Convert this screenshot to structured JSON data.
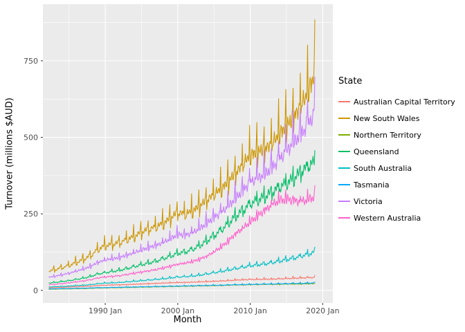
{
  "chart_data": {
    "type": "line",
    "title": "",
    "xlabel": "Month",
    "ylabel": "Turnover (millions $AUD)",
    "legend_title": "State",
    "panel_bg": "#EBEBEB",
    "grid_color": "#FFFFFF",
    "background": "#FFFFFF",
    "tick_label_color": "#4D4D4D",
    "x_tick_labels": [
      "1990 Jan",
      "2000 Jan",
      "2010 Jan",
      "2020 Jan"
    ],
    "x_tick_years": [
      1990,
      2000,
      2010,
      2020
    ],
    "x_minor_years": [
      1985,
      1995,
      2005,
      2015
    ],
    "y_ticks": [
      0,
      250,
      500,
      750
    ],
    "y_minor_ticks": [
      125,
      375,
      625,
      875
    ],
    "x_range_years": [
      1981.4,
      2021.4
    ],
    "y_range": [
      -41,
      935
    ],
    "x_start": 1982.25,
    "x_end": 2018.97,
    "seasonal_pattern": [
      -0.45,
      -0.28,
      -0.12,
      -0.15,
      -0.08,
      -0.18,
      -0.06,
      -0.1,
      -0.04,
      0.03,
      0.2,
      1.0
    ],
    "years_start": 1982,
    "years_end": 2019,
    "series": [
      {
        "name": "Australian Capital Territory",
        "color": "#F8766D",
        "seasonal_amplitude": 0.12,
        "values": [
          8,
          9,
          10,
          11,
          12,
          13,
          14,
          16,
          17,
          18,
          18,
          19,
          20,
          21,
          22,
          23,
          24,
          25,
          26,
          26,
          27,
          28,
          29,
          30,
          31,
          32,
          34,
          35,
          36,
          36,
          37,
          37,
          38,
          39,
          40,
          41,
          42,
          43
        ]
      },
      {
        "name": "New South Wales",
        "color": "#CD9600",
        "seasonal_amplitude": 0.2,
        "values": [
          62,
          68,
          75,
          82,
          92,
          102,
          115,
          135,
          148,
          152,
          158,
          168,
          178,
          192,
          202,
          210,
          222,
          238,
          258,
          252,
          262,
          278,
          298,
          318,
          335,
          360,
          388,
          418,
          448,
          458,
          468,
          488,
          518,
          545,
          575,
          615,
          660,
          730
        ]
      },
      {
        "name": "Northern Territory",
        "color": "#7CAE00",
        "seasonal_amplitude": 0.12,
        "values": [
          4,
          4,
          5,
          5,
          6,
          6,
          7,
          8,
          8,
          9,
          9,
          10,
          10,
          11,
          11,
          12,
          12,
          13,
          13,
          14,
          14,
          15,
          15,
          16,
          16,
          17,
          18,
          18,
          19,
          19,
          20,
          20,
          20,
          21,
          21,
          21,
          22,
          22
        ]
      },
      {
        "name": "Queensland",
        "color": "#00BE67",
        "seasonal_amplitude": 0.09,
        "values": [
          24,
          26,
          29,
          32,
          36,
          40,
          46,
          54,
          58,
          62,
          66,
          72,
          78,
          84,
          90,
          96,
          104,
          112,
          122,
          126,
          134,
          146,
          162,
          180,
          198,
          220,
          244,
          262,
          284,
          296,
          308,
          322,
          338,
          352,
          368,
          388,
          408,
          424
        ]
      },
      {
        "name": "South Australia",
        "color": "#00BFC4",
        "seasonal_amplitude": 0.1,
        "values": [
          11,
          12,
          13,
          14,
          16,
          17,
          19,
          22,
          24,
          25,
          26,
          28,
          30,
          32,
          34,
          36,
          38,
          41,
          44,
          45,
          47,
          50,
          54,
          58,
          62,
          67,
          72,
          76,
          81,
          84,
          87,
          91,
          96,
          101,
          106,
          112,
          119,
          126
        ]
      },
      {
        "name": "Tasmania",
        "color": "#00A9FF",
        "seasonal_amplitude": 0.12,
        "values": [
          5,
          5,
          6,
          6,
          7,
          7,
          8,
          9,
          9,
          10,
          10,
          11,
          11,
          12,
          12,
          13,
          13,
          14,
          14,
          15,
          15,
          16,
          16,
          17,
          17,
          18,
          19,
          19,
          20,
          20,
          21,
          21,
          22,
          22,
          23,
          23,
          24,
          25
        ]
      },
      {
        "name": "Victoria",
        "color": "#C77CFF",
        "seasonal_amplitude": 0.14,
        "values": [
          42,
          46,
          51,
          56,
          63,
          70,
          79,
          92,
          100,
          104,
          108,
          116,
          124,
          133,
          141,
          148,
          158,
          170,
          185,
          182,
          190,
          204,
          222,
          242,
          258,
          280,
          306,
          332,
          360,
          372,
          386,
          408,
          436,
          464,
          494,
          520,
          555,
          595
        ]
      },
      {
        "name": "Western Australia",
        "color": "#FF61CC",
        "seasonal_amplitude": 0.08,
        "values": [
          18,
          20,
          22,
          25,
          28,
          31,
          35,
          41,
          44,
          46,
          48,
          52,
          56,
          60,
          64,
          68,
          73,
          79,
          86,
          89,
          94,
          102,
          112,
          126,
          142,
          162,
          186,
          204,
          224,
          244,
          262,
          282,
          295,
          300,
          295,
          292,
          298,
          310
        ]
      }
    ]
  }
}
